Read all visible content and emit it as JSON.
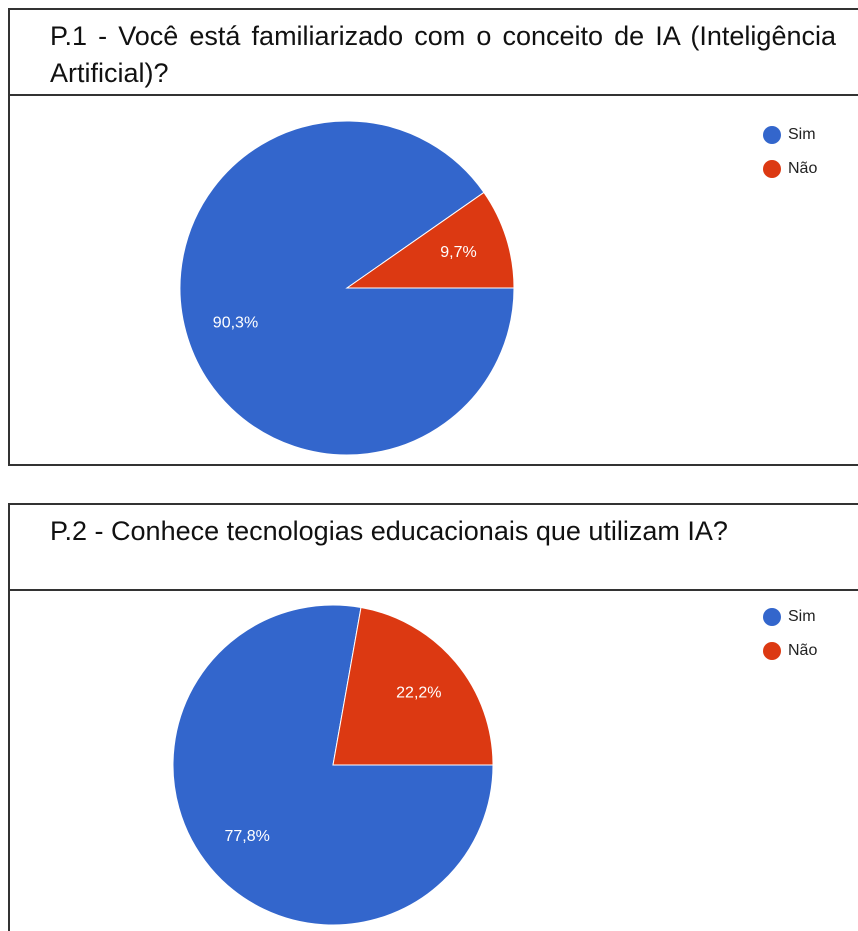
{
  "chart_data": [
    {
      "type": "pie",
      "title": "P.1 - Você está familiarizado com o conceito de IA (Inteligência Artificial)?",
      "categories": [
        "Sim",
        "Não"
      ],
      "values": [
        90.3,
        9.7
      ],
      "value_labels": [
        "90,3%",
        "9,7%"
      ],
      "colors": [
        "#3366cc",
        "#dc3912"
      ],
      "legend": "top-right"
    },
    {
      "type": "pie",
      "title": "P.2 - Conhece tecnologias educacionais que utilizam IA?",
      "categories": [
        "Sim",
        "Não"
      ],
      "values": [
        77.8,
        22.2
      ],
      "value_labels": [
        "77,8%",
        "22,2%"
      ],
      "colors": [
        "#3366cc",
        "#dc3912"
      ],
      "legend": "top-right"
    }
  ]
}
